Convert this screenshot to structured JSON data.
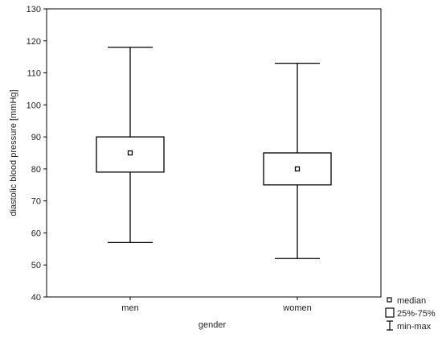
{
  "chart_data": {
    "type": "boxplot",
    "xlabel": "gender",
    "ylabel": "diastolic blood pressure [mmHg]",
    "ylim": [
      40,
      130
    ],
    "yticks": [
      40,
      50,
      60,
      70,
      80,
      90,
      100,
      110,
      120,
      130
    ],
    "categories": [
      "men",
      "women"
    ],
    "groups": [
      {
        "name": "men",
        "min": 57,
        "q1": 79,
        "median": 85,
        "q3": 90,
        "max": 118
      },
      {
        "name": "women",
        "min": 52,
        "q1": 75,
        "median": 80,
        "q3": 85,
        "max": 113
      }
    ],
    "legend": {
      "position": "bottom-right",
      "items": [
        {
          "symbol": "median-square",
          "label": "median"
        },
        {
          "symbol": "box",
          "label": "25%-75%"
        },
        {
          "symbol": "whisker",
          "label": "min-max"
        }
      ]
    },
    "grid": false,
    "colors": {
      "line": "#000000",
      "background": "#ffffff"
    }
  }
}
